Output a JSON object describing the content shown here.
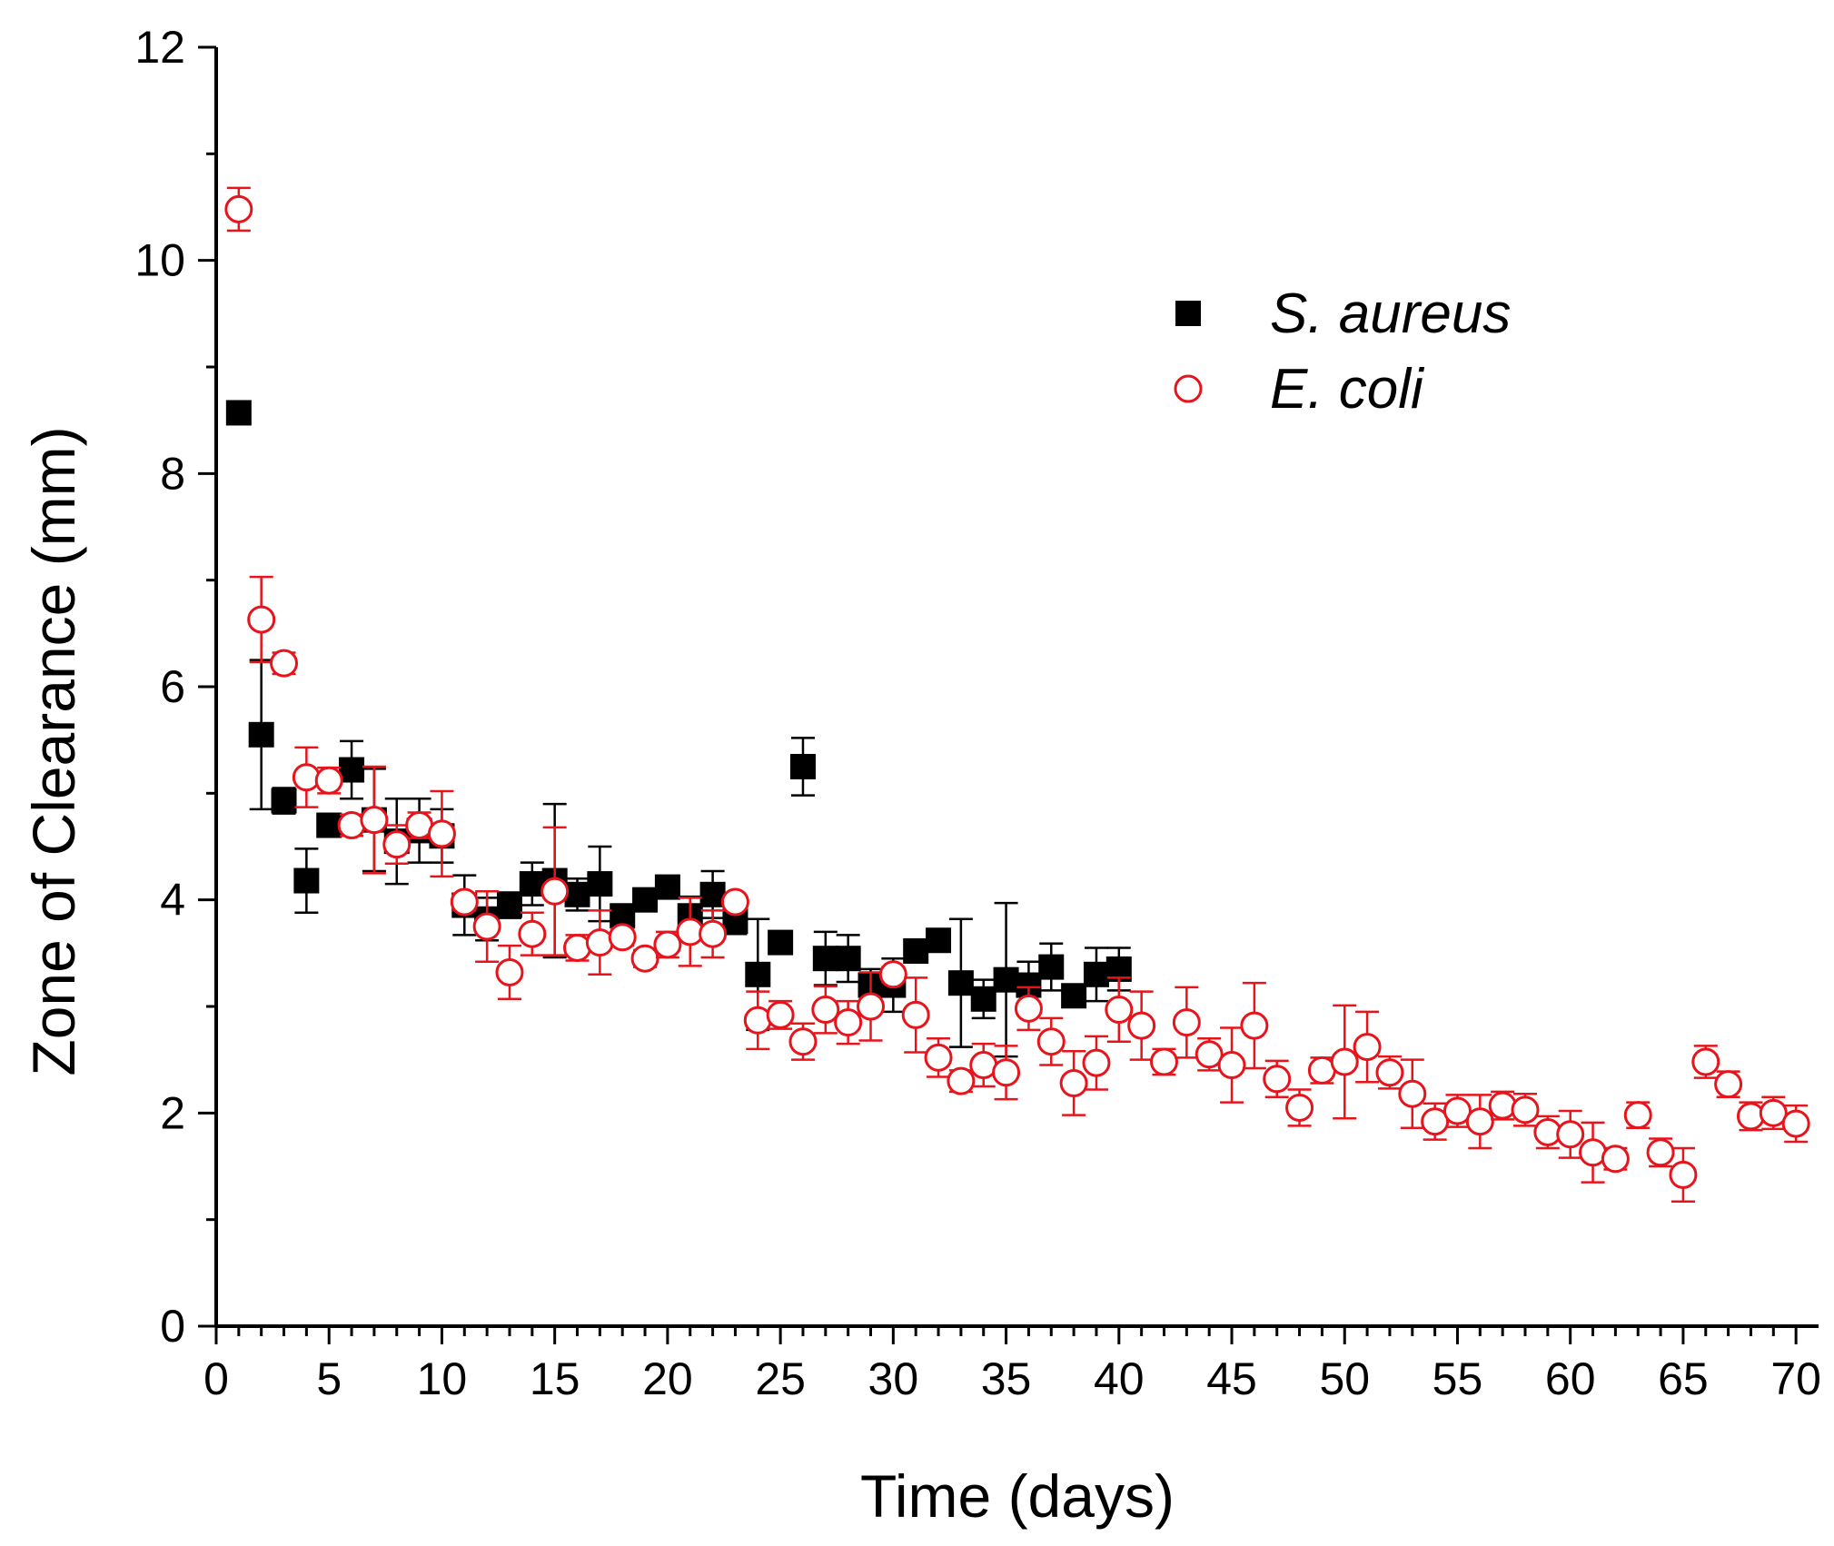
{
  "chart_data": {
    "type": "scatter",
    "title": "",
    "xlabel": "Time (days)",
    "ylabel": "Zone of Clearance (mm)",
    "xlim": [
      0,
      71
    ],
    "ylim": [
      0,
      12
    ],
    "xticks": [
      0,
      5,
      10,
      15,
      20,
      25,
      30,
      35,
      40,
      45,
      50,
      55,
      60,
      65,
      70
    ],
    "yticks": [
      0,
      2,
      4,
      6,
      8,
      10,
      12
    ],
    "legend_position": "top-right",
    "series": [
      {
        "name": "S. aureus",
        "marker": "filled-square",
        "color": "#000000",
        "x": [
          1,
          2,
          3,
          4,
          5,
          6,
          7,
          8,
          9,
          10,
          11,
          12,
          13,
          14,
          15,
          16,
          17,
          18,
          19,
          20,
          21,
          22,
          23,
          24,
          25,
          26,
          27,
          28,
          29,
          30,
          31,
          32,
          33,
          34,
          35,
          36,
          37,
          38,
          39,
          40
        ],
        "y": [
          8.57,
          5.55,
          4.93,
          4.18,
          4.7,
          5.22,
          4.75,
          4.55,
          4.65,
          4.6,
          3.95,
          3.82,
          3.95,
          4.15,
          4.18,
          4.05,
          4.15,
          3.85,
          4.0,
          4.12,
          3.85,
          4.05,
          3.8,
          3.3,
          3.6,
          5.25,
          3.45,
          3.45,
          3.2,
          3.2,
          3.52,
          3.62,
          3.22,
          3.07,
          3.25,
          3.2,
          3.37,
          3.1,
          3.3,
          3.35
        ],
        "err": [
          0,
          0.7,
          0.12,
          0.3,
          0,
          0.27,
          0.48,
          0.4,
          0.3,
          0.25,
          0.28,
          0.2,
          0.12,
          0.2,
          0.72,
          0.15,
          0.35,
          0.1,
          0.1,
          0,
          0.18,
          0.22,
          0.12,
          0.52,
          0,
          0.27,
          0.25,
          0.22,
          0.15,
          0.25,
          0,
          0,
          0.6,
          0.18,
          0.72,
          0.22,
          0.22,
          0.1,
          0.25,
          0.2
        ]
      },
      {
        "name": "E. coli",
        "marker": "open-circle",
        "color": "#e8141c",
        "x": [
          1,
          2,
          3,
          4,
          5,
          6,
          7,
          8,
          9,
          10,
          11,
          12,
          13,
          14,
          15,
          16,
          17,
          18,
          19,
          20,
          21,
          22,
          23,
          24,
          25,
          26,
          27,
          28,
          29,
          30,
          31,
          32,
          33,
          34,
          35,
          36,
          37,
          38,
          39,
          40,
          41,
          42,
          43,
          44,
          45,
          46,
          47,
          48,
          49,
          50,
          51,
          52,
          53,
          54,
          55,
          56,
          57,
          58,
          59,
          60,
          61,
          62,
          63,
          64,
          65,
          66,
          67,
          68,
          69,
          70
        ],
        "y": [
          10.48,
          6.63,
          6.22,
          5.15,
          5.12,
          4.7,
          4.75,
          4.52,
          4.7,
          4.62,
          3.98,
          3.75,
          3.32,
          3.68,
          4.08,
          3.55,
          3.6,
          3.65,
          3.45,
          3.58,
          3.7,
          3.68,
          3.98,
          2.87,
          2.92,
          2.67,
          2.97,
          2.85,
          3.0,
          3.3,
          2.92,
          2.52,
          2.3,
          2.45,
          2.38,
          2.98,
          2.67,
          2.28,
          2.47,
          2.97,
          2.82,
          2.48,
          2.85,
          2.55,
          2.45,
          2.82,
          2.32,
          2.05,
          2.4,
          2.48,
          2.62,
          2.38,
          2.18,
          1.92,
          2.02,
          1.92,
          2.07,
          2.03,
          1.82,
          1.8,
          1.63,
          1.57,
          1.98,
          1.63,
          1.42,
          2.48,
          2.27,
          1.97,
          2.0,
          1.9
        ],
        "err": [
          0.2,
          0.4,
          0.1,
          0.28,
          0.12,
          0.1,
          0.5,
          0.18,
          0.12,
          0.4,
          0.08,
          0.33,
          0.25,
          0.2,
          0.6,
          0.12,
          0.3,
          0.08,
          0.08,
          0.12,
          0.32,
          0.22,
          0.05,
          0.27,
          0.13,
          0.17,
          0.22,
          0.2,
          0.32,
          0.07,
          0.35,
          0.18,
          0.1,
          0.2,
          0.25,
          0.2,
          0.22,
          0.3,
          0.25,
          0.3,
          0.32,
          0.12,
          0.33,
          0.15,
          0.35,
          0.4,
          0.17,
          0.17,
          0.12,
          0.53,
          0.33,
          0.15,
          0.32,
          0.17,
          0.15,
          0.25,
          0.13,
          0.15,
          0.15,
          0.22,
          0.28,
          0.1,
          0.12,
          0.13,
          0.25,
          0.15,
          0.12,
          0.13,
          0.15,
          0.17
        ]
      }
    ]
  }
}
